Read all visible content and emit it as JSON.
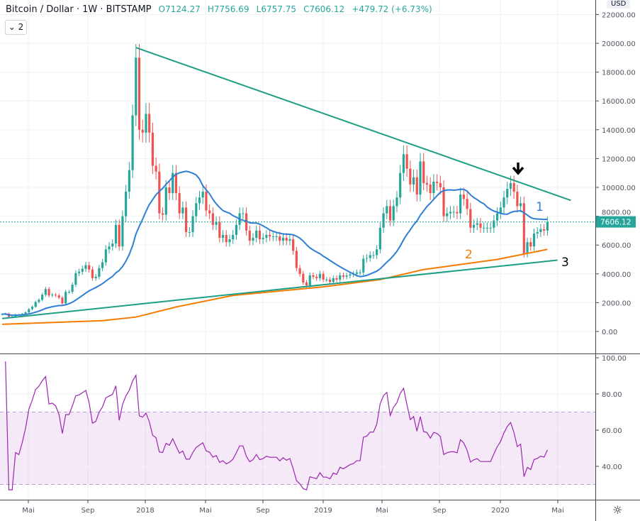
{
  "header": {
    "symbol": "Bitcoin / Dollar",
    "interval": "1W",
    "exchange": "BITSTAMP",
    "open": "O7124.27",
    "high": "H7756.69",
    "low": "L6757.75",
    "close": "C7606.12",
    "change": "+479.72 (+6.73%)",
    "indicator_toggle": "2"
  },
  "price_axis": {
    "currency": "USD",
    "ticks": [
      "22000.00",
      "20000.00",
      "18000.00",
      "16000.00",
      "14000.00",
      "12000.00",
      "10000.00",
      "8000.00",
      "6000.00",
      "4000.00",
      "2000.00",
      "0.00"
    ],
    "last_price": "7606.12"
  },
  "rsi_axis": {
    "ticks": [
      "100.00",
      "80.00",
      "60.00",
      "40.00"
    ],
    "upper_band": 70,
    "lower_band": 30
  },
  "time_axis": {
    "labels": [
      "Mai",
      "Sep",
      "2018",
      "Mai",
      "Sep",
      "2019",
      "Mai",
      "Sep",
      "2020",
      "Mai"
    ]
  },
  "annotations": {
    "label_1": "1",
    "label_2": "2",
    "label_3": "3",
    "arrow": "down-arrow"
  },
  "colors": {
    "up": "#26a69a",
    "down": "#ef5350",
    "ma_short": "#2d7fd6",
    "ma_long": "#f57c00",
    "trendline": "#1e9e84",
    "rsi": "#9c27b0"
  },
  "chart_data": {
    "type": "candlestick",
    "first_week": "2017-03-06",
    "weekly_close": [
      1200,
      1240,
      1020,
      1040,
      1180,
      1170,
      1230,
      1330,
      1550,
      1720,
      2050,
      2200,
      2550,
      2950,
      2500,
      2550,
      2500,
      2350,
      1950,
      2750,
      2750,
      3250,
      4050,
      4150,
      4350,
      4600,
      4300,
      3700,
      3800,
      4400,
      4800,
      5700,
      5900,
      6100,
      7400,
      5900,
      8000,
      9700,
      11200,
      15000,
      19000,
      14000,
      13800,
      15100,
      13800,
      11500,
      11100,
      8200,
      8100,
      10000,
      9600,
      11000,
      9600,
      8200,
      8600,
      6900,
      6900,
      8000,
      8900,
      9300,
      9700,
      8400,
      8200,
      7400,
      7600,
      6500,
      6700,
      6200,
      6400,
      6700,
      7400,
      8200,
      8200,
      7000,
      6300,
      6500,
      7000,
      6400,
      6500,
      6700,
      6600,
      6600,
      6600,
      6300,
      6500,
      6300,
      6400,
      5600,
      4400,
      4000,
      3400,
      3200,
      3900,
      3800,
      3700,
      4000,
      3600,
      3600,
      3450,
      3700,
      3600,
      3900,
      3800,
      3880,
      3960,
      4000,
      4100,
      4100,
      5050,
      5100,
      5300,
      5300,
      5700,
      7200,
      8200,
      8700,
      7700,
      8700,
      9300,
      11000,
      12300,
      11300,
      10200,
      10700,
      9500,
      11800,
      10300,
      10200,
      9600,
      10400,
      10300,
      10000,
      8000,
      8200,
      8300,
      8300,
      8200,
      9500,
      9200,
      8500,
      7200,
      7400,
      7500,
      7200,
      7200,
      7200,
      7200,
      7700,
      8200,
      8600,
      9300,
      9900,
      10300,
      9700,
      8700,
      8900,
      5400,
      6200,
      5900,
      6800,
      6900,
      7100,
      7000,
      7606.12
    ],
    "ma_long": [
      [
        "2017-03-06",
        500
      ],
      [
        "2017-10-02",
        750
      ],
      [
        "2017-12-11",
        1000
      ],
      [
        "2018-03-05",
        1700
      ],
      [
        "2018-07-02",
        2500
      ],
      [
        "2019-01-07",
        3100
      ],
      [
        "2019-05-06",
        3600
      ],
      [
        "2019-08-05",
        4300
      ],
      [
        "2020-01-06",
        5000
      ],
      [
        "2020-04-20",
        5700
      ]
    ],
    "trendlines": [
      [
        [
          "2017-12-11",
          19700
        ],
        [
          "2020-06-08",
          9100
        ]
      ],
      [
        [
          "2017-03-06",
          900
        ],
        [
          "2020-05-11",
          4950
        ]
      ]
    ],
    "price_range": [
      -1400,
      22500
    ],
    "rsi_range": [
      25,
      100
    ]
  }
}
